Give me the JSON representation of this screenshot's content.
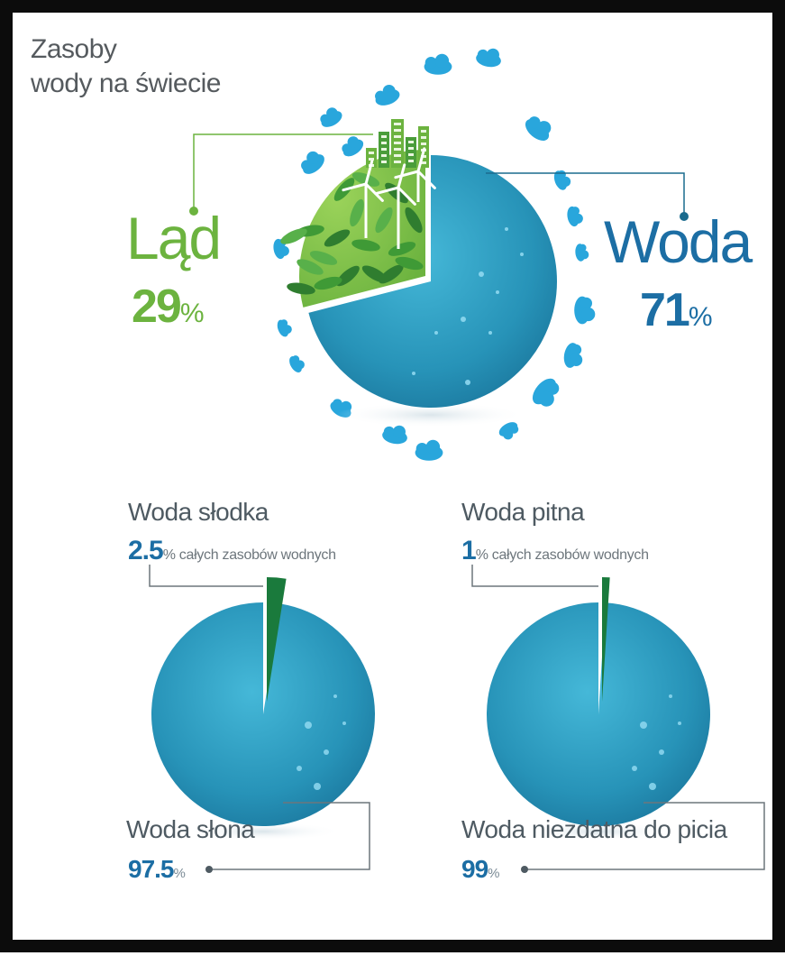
{
  "title_line1": "Zasoby",
  "title_line2": "wody na świecie",
  "colors": {
    "land": "#6cb33f",
    "water": "#1c6ea4",
    "globe": "#2f9fc4",
    "fresh": "#1a7a3c",
    "cloud": "#29a6dc",
    "leader": "#1a6b8e"
  },
  "icons": [
    "cloud-icon",
    "wind-turbine-icon",
    "city-building-icon",
    "leaf-icon"
  ],
  "chart_data": [
    {
      "type": "pie",
      "title": "Zasoby wody na świecie",
      "slices": [
        {
          "label": "Ląd",
          "value": 29,
          "unit": "%",
          "color": "#6cb33f"
        },
        {
          "label": "Woda",
          "value": 71,
          "unit": "%",
          "color": "#2f9fc4"
        }
      ]
    },
    {
      "type": "pie",
      "slices": [
        {
          "label": "Woda słodka",
          "value": 2.5,
          "unit": "% całych zasobów wodnych",
          "color": "#1a7a3c"
        },
        {
          "label": "Woda słona",
          "value": 97.5,
          "unit": "%",
          "color": "#2f9fc4"
        }
      ]
    },
    {
      "type": "pie",
      "slices": [
        {
          "label": "Woda pitna",
          "value": 1,
          "unit": "% całych zasobów wodnych",
          "color": "#1a7a3c"
        },
        {
          "label": "Woda niezdatna do picia",
          "value": 99,
          "unit": "%",
          "color": "#2f9fc4"
        }
      ]
    }
  ],
  "labels": {
    "land_name": "Ląd",
    "land_value": "29",
    "water_name": "Woda",
    "water_value": "71",
    "pct_sign": "%",
    "fresh_name": "Woda słodka",
    "fresh_value": "2.5",
    "fresh_unit": "% całych zasobów wodnych",
    "salt_name": "Woda słona",
    "salt_value": "97.5",
    "drink_name": "Woda pitna",
    "drink_value": "1",
    "drink_unit": "% całych zasobów wodnych",
    "nondrink_name": "Woda niezdatna do picia",
    "nondrink_value": "99"
  }
}
